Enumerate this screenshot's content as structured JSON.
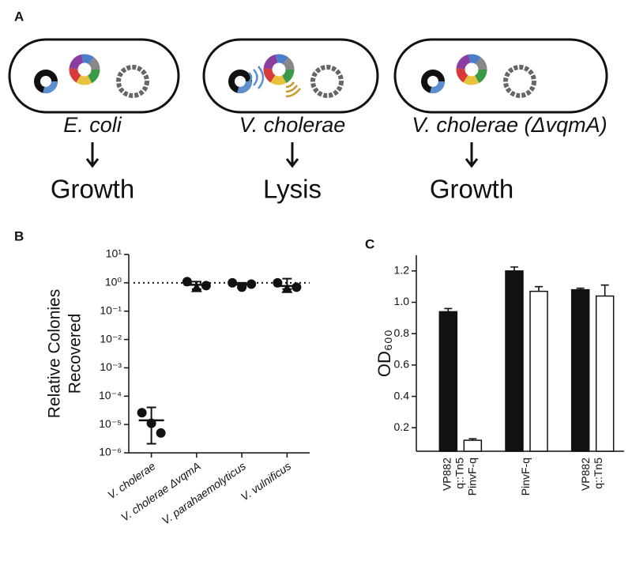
{
  "panel_a": {
    "label": "A",
    "cells": [
      {
        "name": "E. coli",
        "outcome": "Growth"
      },
      {
        "name": "V. cholerae",
        "outcome": "Lysis"
      },
      {
        "name": "V. cholerae (ΔvqmA)",
        "outcome": "Growth"
      }
    ]
  },
  "chart_data": [
    {
      "label": "B",
      "type": "scatter",
      "ylabel": [
        "Relative Colonies",
        "Recovered"
      ],
      "categories": [
        "V. cholerae",
        "V. cholerae ΔvqmA",
        "V. parahaemolyticus",
        "V. vulnificus"
      ],
      "log_scale": true,
      "ylim": [
        1e-06,
        10
      ],
      "yticks": [
        {
          "value": 1e-06,
          "label": "10⁻⁶"
        },
        {
          "value": 1e-05,
          "label": "10⁻⁵"
        },
        {
          "value": 0.0001,
          "label": "10⁻⁴"
        },
        {
          "value": 0.001,
          "label": "10⁻³"
        },
        {
          "value": 0.01,
          "label": "10⁻²"
        },
        {
          "value": 0.1,
          "label": "10⁻¹"
        },
        {
          "value": 1,
          "label": "10⁰"
        },
        {
          "value": 10,
          "label": "10¹"
        }
      ],
      "points": [
        [
          2.6e-05,
          1.1e-05,
          5e-06
        ],
        [
          1.1,
          0.65,
          0.8
        ],
        [
          1.0,
          0.7,
          0.9
        ],
        [
          1.0,
          0.6,
          0.7
        ]
      ],
      "markers": [
        [
          "circle",
          "circle",
          "circle"
        ],
        [
          "circle",
          "triangle",
          "circle"
        ],
        [
          "circle",
          "circle",
          "circle"
        ],
        [
          "circle",
          "triangle",
          "circle"
        ]
      ],
      "means": [
        1.4e-05,
        0.85,
        0.87,
        0.77
      ],
      "errors": [
        [
          2.1e-06,
          4e-05
        ],
        [
          0.6,
          1.1
        ],
        [
          0.7,
          1.0
        ],
        [
          0.6,
          1.4
        ]
      ],
      "reference_line": 1,
      "color": "#111111"
    },
    {
      "label": "C",
      "type": "bar",
      "ylabel": "OD₆₀₀",
      "categories": [
        [
          "VP882",
          "q::Tn5",
          "PinvF-q"
        ],
        [
          "PinvF-q"
        ],
        [
          "VP882",
          "q::Tn5"
        ]
      ],
      "ylim": [
        0.05,
        1.3
      ],
      "yticks": [
        0.2,
        0.4,
        0.6,
        0.8,
        {
          "value": 1,
          "label": "1.0"
        },
        1.2
      ],
      "series": [
        {
          "color": "#111111",
          "values": [
            0.94,
            1.2,
            1.08
          ],
          "errors": [
            0.02,
            0.025,
            0.01
          ]
        },
        {
          "color": "#ffffff",
          "values": [
            0.12,
            1.07,
            1.04
          ],
          "errors": [
            0.01,
            0.03,
            0.07
          ]
        }
      ],
      "edge_color": "#111111"
    }
  ]
}
